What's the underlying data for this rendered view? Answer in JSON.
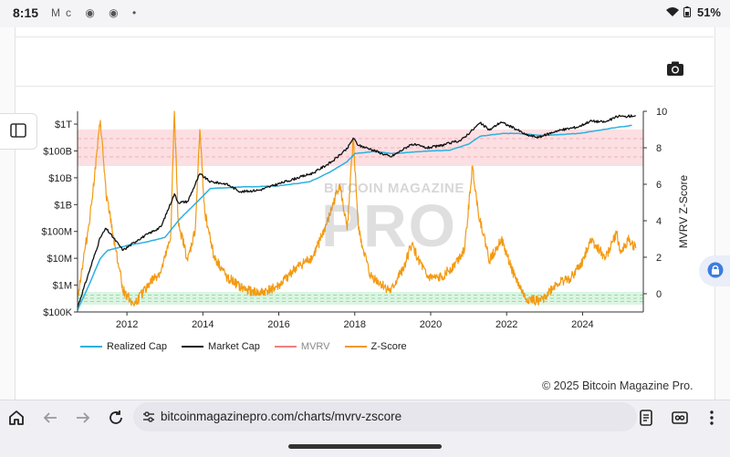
{
  "status_bar": {
    "time": "8:15",
    "notification_icons": [
      "Mc",
      "chrome-icon",
      "chrome-icon",
      "•"
    ],
    "battery": "51%"
  },
  "legend": {
    "realized_cap": "Realized Cap",
    "market_cap": "Market Cap",
    "mvrv": "MVRV",
    "zscore": "Z-Score"
  },
  "watermark": {
    "line1": "BITCOIN MAGAZINE",
    "line2": "PRO"
  },
  "copyright": "© 2025 Bitcoin Magazine Pro.",
  "browser": {
    "url": "bitcoinmagazinepro.com/charts/mvrv-zscore",
    "home_label": "home",
    "tabs_icon": "tab-switcher-icon",
    "menu_icon": "more-vert-icon"
  },
  "colors": {
    "realized": "#2bb0e0",
    "market": "#111111",
    "mvrv": "#f08080",
    "zscore": "#f39a12",
    "red_band": "#fcd9dd",
    "green_band": "#d6f3dd"
  },
  "chart_data": {
    "type": "line",
    "title": "",
    "xlabel": "",
    "x_range": [
      2010.7,
      2025.6
    ],
    "x_ticks": [
      2012,
      2014,
      2016,
      2018,
      2020,
      2022,
      2024
    ],
    "left_axis": {
      "scale": "log",
      "range": [
        100000,
        3000000000000
      ],
      "ticks": [
        {
          "value": 100000,
          "label": "$100K"
        },
        {
          "value": 1000000,
          "label": "$1M"
        },
        {
          "value": 10000000,
          "label": "$10M"
        },
        {
          "value": 100000000,
          "label": "$100M"
        },
        {
          "value": 1000000000,
          "label": "$1B"
        },
        {
          "value": 10000000000,
          "label": "$10B"
        },
        {
          "value": 100000000000,
          "label": "$100B"
        },
        {
          "value": 1000000000000,
          "label": "$1T"
        }
      ]
    },
    "right_axis": {
      "label": "MVRV Z-Score",
      "range": [
        -1,
        10
      ],
      "ticks": [
        0,
        2,
        4,
        6,
        8,
        10
      ]
    },
    "bands": [
      {
        "name": "red-zone",
        "axis": "right",
        "from": 7,
        "to": 9
      },
      {
        "name": "green-zone",
        "axis": "right",
        "from": -0.6,
        "to": 0.1
      }
    ],
    "series": [
      {
        "name": "Realized Cap",
        "axis": "left",
        "x": [
          2010.7,
          2011.0,
          2011.3,
          2011.5,
          2012.0,
          2012.5,
          2013.0,
          2013.4,
          2013.9,
          2014.2,
          2015.0,
          2016.0,
          2016.8,
          2017.3,
          2017.8,
          2018.0,
          2018.5,
          2019.0,
          2019.5,
          2020.0,
          2020.5,
          2021.0,
          2021.3,
          2021.9,
          2022.3,
          2022.9,
          2023.3,
          2023.9,
          2024.3,
          2024.9,
          2025.3
        ],
        "values": [
          120000.0,
          1000000.0,
          10000000.0,
          20000000.0,
          30000000.0,
          40000000.0,
          60000000.0,
          300000000.0,
          1500000000.0,
          4000000000.0,
          4500000000.0,
          5000000000.0,
          7000000000.0,
          15000000000.0,
          40000000000.0,
          80000000000.0,
          95000000000.0,
          80000000000.0,
          90000000000.0,
          100000000000.0,
          105000000000.0,
          180000000000.0,
          350000000000.0,
          450000000000.0,
          450000000000.0,
          380000000000.0,
          400000000000.0,
          450000000000.0,
          550000000000.0,
          750000000000.0,
          900000000000.0
        ]
      },
      {
        "name": "Market Cap",
        "axis": "left",
        "x": [
          2010.7,
          2011.0,
          2011.3,
          2011.45,
          2011.8,
          2011.9,
          2012.3,
          2012.9,
          2013.25,
          2013.35,
          2013.6,
          2013.92,
          2014.2,
          2014.6,
          2015.0,
          2015.5,
          2016.0,
          2016.5,
          2016.9,
          2017.4,
          2017.8,
          2017.96,
          2018.1,
          2018.4,
          2018.95,
          2019.5,
          2019.9,
          2020.2,
          2020.8,
          2021.1,
          2021.3,
          2021.55,
          2021.85,
          2022.3,
          2022.5,
          2022.85,
          2023.3,
          2023.9,
          2024.2,
          2024.6,
          2024.95,
          2025.1,
          2025.4
        ],
        "values": [
          150000.0,
          3000000.0,
          60000000.0,
          130000000.0,
          30000000.0,
          20000000.0,
          50000000.0,
          150000000.0,
          2500000000.0,
          1200000000.0,
          1300000000.0,
          14000000000.0,
          7000000000.0,
          6000000000.0,
          3000000000.0,
          3500000000.0,
          6000000000.0,
          10000000000.0,
          15000000000.0,
          40000000000.0,
          120000000000.0,
          300000000000.0,
          160000000000.0,
          120000000000.0,
          60000000000.0,
          180000000000.0,
          130000000000.0,
          150000000000.0,
          250000000000.0,
          600000000000.0,
          1100000000000.0,
          600000000000.0,
          1200000000000.0,
          600000000000.0,
          400000000000.0,
          320000000000.0,
          550000000000.0,
          800000000000.0,
          1300000000000.0,
          1200000000000.0,
          2000000000000.0,
          1900000000000.0,
          2100000000000.0
        ]
      },
      {
        "name": "Z-Score",
        "axis": "right",
        "x": [
          2010.7,
          2010.9,
          2011.0,
          2011.15,
          2011.3,
          2011.45,
          2011.7,
          2011.9,
          2012.2,
          2012.6,
          2012.9,
          2013.15,
          2013.25,
          2013.35,
          2013.6,
          2013.8,
          2013.92,
          2014.05,
          2014.3,
          2014.6,
          2015.0,
          2015.5,
          2016.0,
          2016.4,
          2016.9,
          2017.3,
          2017.6,
          2017.8,
          2017.96,
          2018.1,
          2018.4,
          2018.95,
          2019.3,
          2019.5,
          2019.9,
          2020.2,
          2020.6,
          2020.9,
          2021.1,
          2021.25,
          2021.55,
          2021.85,
          2022.2,
          2022.5,
          2022.9,
          2023.3,
          2023.7,
          2024.0,
          2024.2,
          2024.6,
          2024.9,
          2025.0,
          2025.2,
          2025.4
        ],
        "values": [
          -0.2,
          2.5,
          3.8,
          6.5,
          9.5,
          5.5,
          2.5,
          0.2,
          -0.6,
          0.6,
          1.2,
          3.0,
          10.0,
          4.0,
          1.8,
          3.5,
          9.0,
          4.5,
          2.0,
          1.0,
          0.3,
          0.0,
          0.4,
          1.3,
          2.0,
          4.0,
          6.0,
          3.5,
          8.5,
          3.5,
          1.0,
          0.1,
          1.5,
          2.7,
          0.9,
          0.8,
          1.5,
          2.5,
          7.0,
          4.5,
          1.8,
          3.0,
          1.0,
          -0.3,
          -0.4,
          0.5,
          0.9,
          1.7,
          3.0,
          2.0,
          3.3,
          2.2,
          3.0,
          2.5
        ]
      }
    ]
  }
}
